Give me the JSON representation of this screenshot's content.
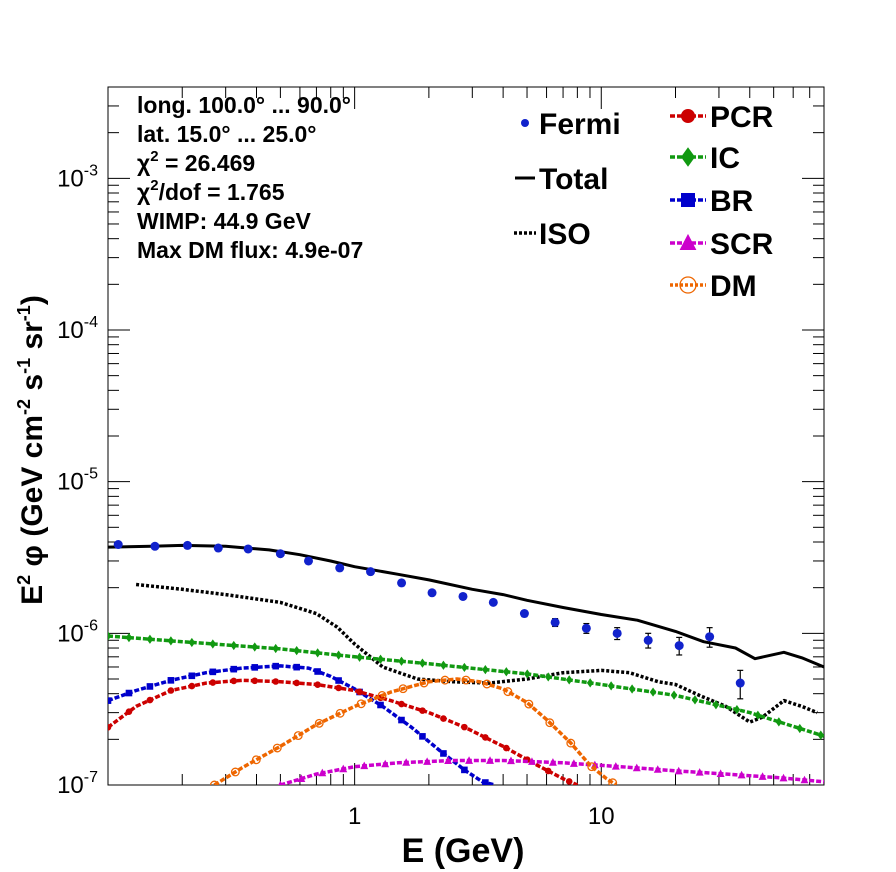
{
  "chart_data": {
    "type": "line",
    "xscale": "log",
    "yscale": "log",
    "xlim": [
      0.1,
      80
    ],
    "ylim": [
      1e-07,
      0.004
    ],
    "xlabel": "E (GeV)",
    "ylabel": {
      "main": "E",
      "sup1": "2",
      "phi": " φ (GeV cm",
      "sup2": "-2",
      "mid": " s",
      "sup3": "-1",
      "mid2": " sr",
      "sup4": "-1",
      "end": ")"
    },
    "x_ticks": [
      {
        "v": 1,
        "label": "1"
      },
      {
        "v": 10,
        "label": "10"
      }
    ],
    "y_ticks": [
      {
        "v": 1e-07,
        "base": "10",
        "exp": "-7"
      },
      {
        "v": 1e-06,
        "base": "10",
        "exp": "-6"
      },
      {
        "v": 1e-05,
        "base": "10",
        "exp": "-5"
      },
      {
        "v": 0.0001,
        "base": "10",
        "exp": "-4"
      },
      {
        "v": 0.001,
        "base": "10",
        "exp": "-3"
      }
    ],
    "info": [
      {
        "text": "long. 100.0° ... 90.0°"
      },
      {
        "text": "lat. 15.0° ... 25.0°"
      },
      {
        "text": "χ",
        "sup": "2",
        "rest": " = 26.469"
      },
      {
        "text": "χ",
        "sup": "2",
        "rest": "/dof = 1.765"
      },
      {
        "text": "WIMP: 44.9 GeV"
      },
      {
        "text": "Max DM flux: 4.9e-07"
      }
    ],
    "legend_left": [
      {
        "key": "fermi",
        "label": "Fermi"
      },
      {
        "key": "total",
        "label": "Total"
      },
      {
        "key": "iso",
        "label": "ISO"
      }
    ],
    "legend_right": [
      {
        "key": "pcr",
        "label": "PCR"
      },
      {
        "key": "ic",
        "label": "IC"
      },
      {
        "key": "br",
        "label": "BR"
      },
      {
        "key": "scr",
        "label": "SCR"
      },
      {
        "key": "dm",
        "label": "DM"
      }
    ],
    "series": [
      {
        "key": "total",
        "color": "#000000",
        "style": "solid",
        "marker": "none",
        "x": [
          0.1,
          0.15,
          0.2,
          0.3,
          0.45,
          0.6,
          0.8,
          1.0,
          1.5,
          2,
          3,
          4,
          5,
          7,
          10,
          14,
          20,
          26,
          35,
          42,
          55,
          65,
          80
        ],
        "y": [
          3.7e-06,
          3.75e-06,
          3.8e-06,
          3.75e-06,
          3.55e-06,
          3.3e-06,
          3e-06,
          2.75e-06,
          2.45e-06,
          2.25e-06,
          1.95e-06,
          1.8e-06,
          1.65e-06,
          1.48e-06,
          1.33e-06,
          1.22e-06,
          1.03e-06,
          8.8e-07,
          8e-07,
          6.8e-07,
          7.5e-07,
          6.9e-07,
          6e-07
        ]
      },
      {
        "key": "iso",
        "color": "#000000",
        "style": "dotted",
        "marker": "none",
        "x": [
          0.13,
          0.2,
          0.3,
          0.5,
          0.7,
          0.85,
          1.0,
          1.3,
          1.8,
          2.5,
          3.5,
          5,
          7,
          10,
          13,
          17,
          20,
          25,
          32,
          40,
          45,
          55,
          65,
          75
        ],
        "y": [
          2.1e-06,
          1.95e-06,
          1.8e-06,
          1.6e-06,
          1.35e-06,
          1.1e-06,
          8.5e-07,
          6e-07,
          5e-07,
          4.8e-07,
          4.7e-07,
          5e-07,
          5.5e-07,
          5.7e-07,
          5.5e-07,
          4.8e-07,
          4.6e-07,
          3.9e-07,
          3.3e-07,
          2.6e-07,
          2.8e-07,
          3.6e-07,
          3.3e-07,
          3e-07
        ]
      },
      {
        "key": "ic",
        "color": "#119911",
        "style": "dashed",
        "marker": "diamond",
        "x": [
          0.1,
          0.2,
          0.5,
          1,
          2,
          5,
          10,
          20,
          40,
          80
        ],
        "y": [
          9.6e-07,
          8.8e-07,
          7.9e-07,
          7e-07,
          6.3e-07,
          5.4e-07,
          4.6e-07,
          3.9e-07,
          3e-07,
          2.1e-07
        ]
      },
      {
        "key": "br",
        "color": "#0000cc",
        "style": "dashed",
        "marker": "square",
        "x": [
          0.1,
          0.13,
          0.18,
          0.25,
          0.35,
          0.5,
          0.65,
          0.8,
          1.0,
          1.3,
          1.7,
          2.2,
          2.8,
          3.3,
          3.7
        ],
        "y": [
          3.6e-07,
          4.2e-07,
          4.9e-07,
          5.5e-07,
          5.9e-07,
          6.1e-07,
          5.9e-07,
          5.2e-07,
          4.3e-07,
          3.3e-07,
          2.4e-07,
          1.7e-07,
          1.25e-07,
          1.05e-07,
          1e-07
        ]
      },
      {
        "key": "pcr",
        "color": "#cc0000",
        "style": "dashed",
        "marker": "circle",
        "x": [
          0.1,
          0.13,
          0.18,
          0.25,
          0.35,
          0.5,
          0.7,
          1.0,
          1.4,
          2,
          2.8,
          4,
          5.5,
          7,
          8
        ],
        "y": [
          2.4e-07,
          3.3e-07,
          4.2e-07,
          4.7e-07,
          4.9e-07,
          4.8e-07,
          4.6e-07,
          4.2e-07,
          3.6e-07,
          3e-07,
          2.4e-07,
          1.8e-07,
          1.35e-07,
          1.1e-07,
          1e-07
        ]
      },
      {
        "key": "scr",
        "color": "#cc00cc",
        "style": "dashed",
        "marker": "triangle",
        "x": [
          0.5,
          0.7,
          1.0,
          1.5,
          2.5,
          4,
          7,
          12,
          20,
          35,
          55,
          80
        ],
        "y": [
          1e-07,
          1.18e-07,
          1.32e-07,
          1.4e-07,
          1.45e-07,
          1.45e-07,
          1.4e-07,
          1.32e-07,
          1.24e-07,
          1.17e-07,
          1.11e-07,
          1.05e-07
        ]
      },
      {
        "key": "dm",
        "color": "#ee6600",
        "style": "dashed",
        "marker": "opencircle",
        "x": [
          0.27,
          0.35,
          0.5,
          0.7,
          1.0,
          1.4,
          2.0,
          2.6,
          3.2,
          4.0,
          5.0,
          6.0,
          7.5,
          9.0,
          10.5,
          11.5
        ],
        "y": [
          1e-07,
          1.3e-07,
          1.8e-07,
          2.5e-07,
          3.3e-07,
          4.1e-07,
          4.8e-07,
          5e-07,
          4.8e-07,
          4.3e-07,
          3.5e-07,
          2.7e-07,
          1.9e-07,
          1.35e-07,
          1.1e-07,
          1e-07
        ]
      }
    ],
    "fermi": {
      "color": "#1122cc",
      "x": [
        0.11,
        0.155,
        0.21,
        0.28,
        0.37,
        0.5,
        0.65,
        0.87,
        1.16,
        1.55,
        2.06,
        2.75,
        3.65,
        4.88,
        6.5,
        8.7,
        11.6,
        15.5,
        20.7,
        27.5,
        36.6,
        48.8,
        65
      ],
      "y": [
        3.85e-06,
        3.75e-06,
        3.8e-06,
        3.65e-06,
        3.6e-06,
        3.35e-06,
        3e-06,
        2.7e-06,
        2.55e-06,
        2.15e-06,
        1.85e-06,
        1.75e-06,
        1.6e-06,
        1.35e-06,
        1.18e-06,
        1.08e-06,
        1e-06,
        9e-07,
        8.3e-07,
        9.5e-07,
        4.7e-07,
        0,
        0
      ],
      "err": [
        6e-08,
        5e-08,
        5e-08,
        5e-08,
        5e-08,
        5e-08,
        5e-08,
        5e-08,
        5e-08,
        5e-08,
        5e-08,
        5e-08,
        5e-08,
        6e-08,
        7e-08,
        8e-08,
        9e-08,
        1e-07,
        1.1e-07,
        1.4e-07,
        1e-07,
        0,
        0
      ]
    }
  }
}
